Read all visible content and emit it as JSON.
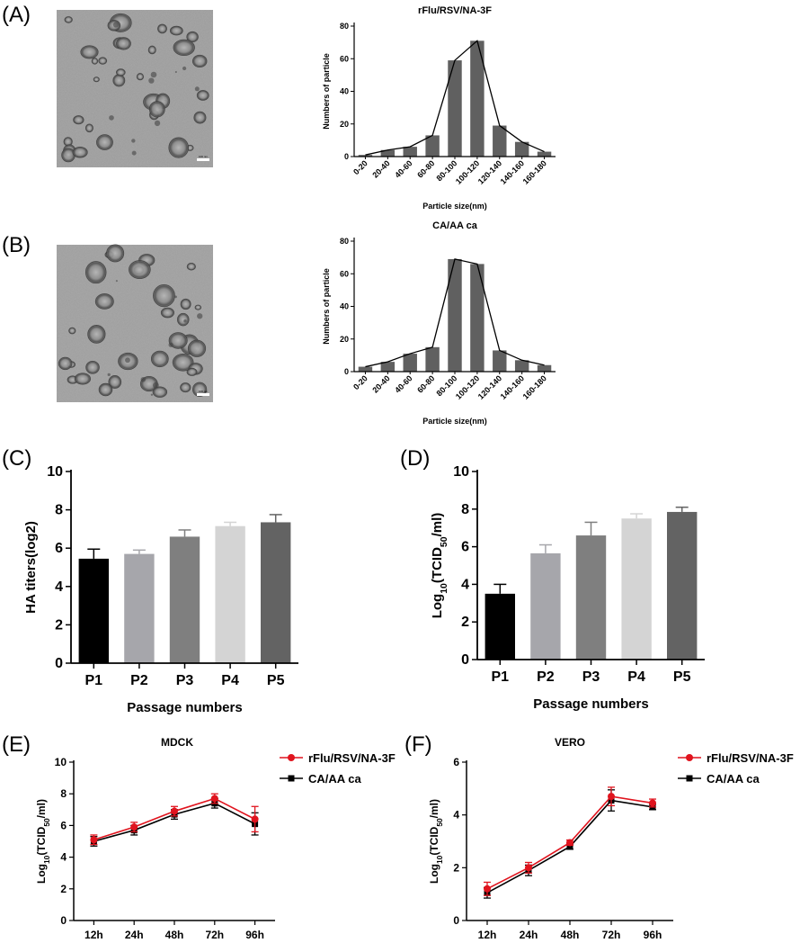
{
  "panel_labels": [
    "(A)",
    "(B)",
    "(C)",
    "(D)",
    "(E)",
    "(F)"
  ],
  "micrographs": {
    "A": {
      "scale_bar": "100 nm"
    },
    "B": {
      "scale_bar": "100 nm"
    }
  },
  "colors": {
    "bar_gray": "#606060",
    "red_series": "#e0141e",
    "black_series": "#000000",
    "passage_bars": [
      "#000000",
      "#a6a6ab",
      "#7f7f7f",
      "#d4d4d4",
      "#636363"
    ]
  },
  "chart_data": [
    {
      "id": "A",
      "type": "bar",
      "title": "rFlu/RSV/NA-3F",
      "xlabel": "Particle size(nm)",
      "ylabel": "Numbers of particle",
      "ylim": [
        0,
        80
      ],
      "yticks": [
        0,
        20,
        40,
        60,
        80
      ],
      "categories": [
        "0-20",
        "20-40",
        "40-60",
        "60-80",
        "80-100",
        "100-120",
        "120-140",
        "140-160",
        "160-180"
      ],
      "values": [
        1,
        4,
        6,
        13,
        59,
        71,
        19,
        9,
        3
      ],
      "overlay_line": true,
      "grid": false
    },
    {
      "id": "B",
      "type": "bar",
      "title": "CA/AA ca",
      "xlabel": "Particle size(nm)",
      "ylabel": "Numbers of particle",
      "ylim": [
        0,
        80
      ],
      "yticks": [
        0,
        20,
        40,
        60,
        80
      ],
      "categories": [
        "0-20",
        "20-40",
        "40-60",
        "60-80",
        "80-100",
        "100-120",
        "120-140",
        "140-160",
        "160-180"
      ],
      "values": [
        3,
        6,
        11,
        15,
        69,
        66,
        13,
        7,
        4
      ],
      "overlay_line": true,
      "grid": false
    },
    {
      "id": "C",
      "type": "bar",
      "title": "",
      "xlabel": "Passage numbers",
      "ylabel": "HA titers(log2)",
      "ylim": [
        0,
        10
      ],
      "yticks": [
        0,
        2,
        4,
        6,
        8,
        10
      ],
      "categories": [
        "P1",
        "P2",
        "P3",
        "P4",
        "P5"
      ],
      "values": [
        5.45,
        5.7,
        6.6,
        7.15,
        7.35
      ],
      "errors": [
        0.5,
        0.2,
        0.35,
        0.2,
        0.4
      ],
      "grid": false
    },
    {
      "id": "D",
      "type": "bar",
      "title": "",
      "xlabel": "Passage numbers",
      "ylabel": "Log10(TCID50/ml)",
      "ylim": [
        0,
        10
      ],
      "yticks": [
        0,
        2,
        4,
        6,
        8,
        10
      ],
      "categories": [
        "P1",
        "P2",
        "P3",
        "P4",
        "P5"
      ],
      "values": [
        3.5,
        5.65,
        6.6,
        7.5,
        7.85
      ],
      "errors": [
        0.5,
        0.45,
        0.7,
        0.25,
        0.25
      ],
      "grid": false
    },
    {
      "id": "E",
      "type": "line",
      "title": "MDCK",
      "xlabel": "",
      "ylabel": "Log10(TCID50/ml)",
      "ylim": [
        0,
        10
      ],
      "yticks": [
        0,
        2,
        4,
        6,
        8,
        10
      ],
      "categories": [
        "12h",
        "24h",
        "48h",
        "72h",
        "96h"
      ],
      "legend": "top-right",
      "series": [
        {
          "name": "rFlu/RSV/NA-3F",
          "values": [
            5.1,
            5.9,
            6.9,
            7.7,
            6.4
          ],
          "errors": [
            0.3,
            0.3,
            0.3,
            0.3,
            0.8
          ]
        },
        {
          "name": "CA/AA ca",
          "values": [
            5.0,
            5.7,
            6.7,
            7.4,
            6.1
          ],
          "errors": [
            0.3,
            0.3,
            0.3,
            0.3,
            0.7
          ]
        }
      ],
      "grid": false
    },
    {
      "id": "F",
      "type": "line",
      "title": "VERO",
      "xlabel": "",
      "ylabel": "Log10(TCID50/ml)",
      "ylim": [
        0,
        6
      ],
      "yticks": [
        0,
        2,
        4,
        6
      ],
      "categories": [
        "12h",
        "24h",
        "48h",
        "72h",
        "96h"
      ],
      "legend": "top-right",
      "series": [
        {
          "name": "rFlu/RSV/NA-3F",
          "values": [
            1.2,
            2.0,
            2.95,
            4.7,
            4.45
          ],
          "errors": [
            0.25,
            0.2,
            0.1,
            0.35,
            0.15
          ]
        },
        {
          "name": "CA/AA ca",
          "values": [
            1.05,
            1.9,
            2.8,
            4.55,
            4.3
          ],
          "errors": [
            0.2,
            0.2,
            0.1,
            0.4,
            0.1
          ]
        }
      ],
      "grid": false
    }
  ]
}
